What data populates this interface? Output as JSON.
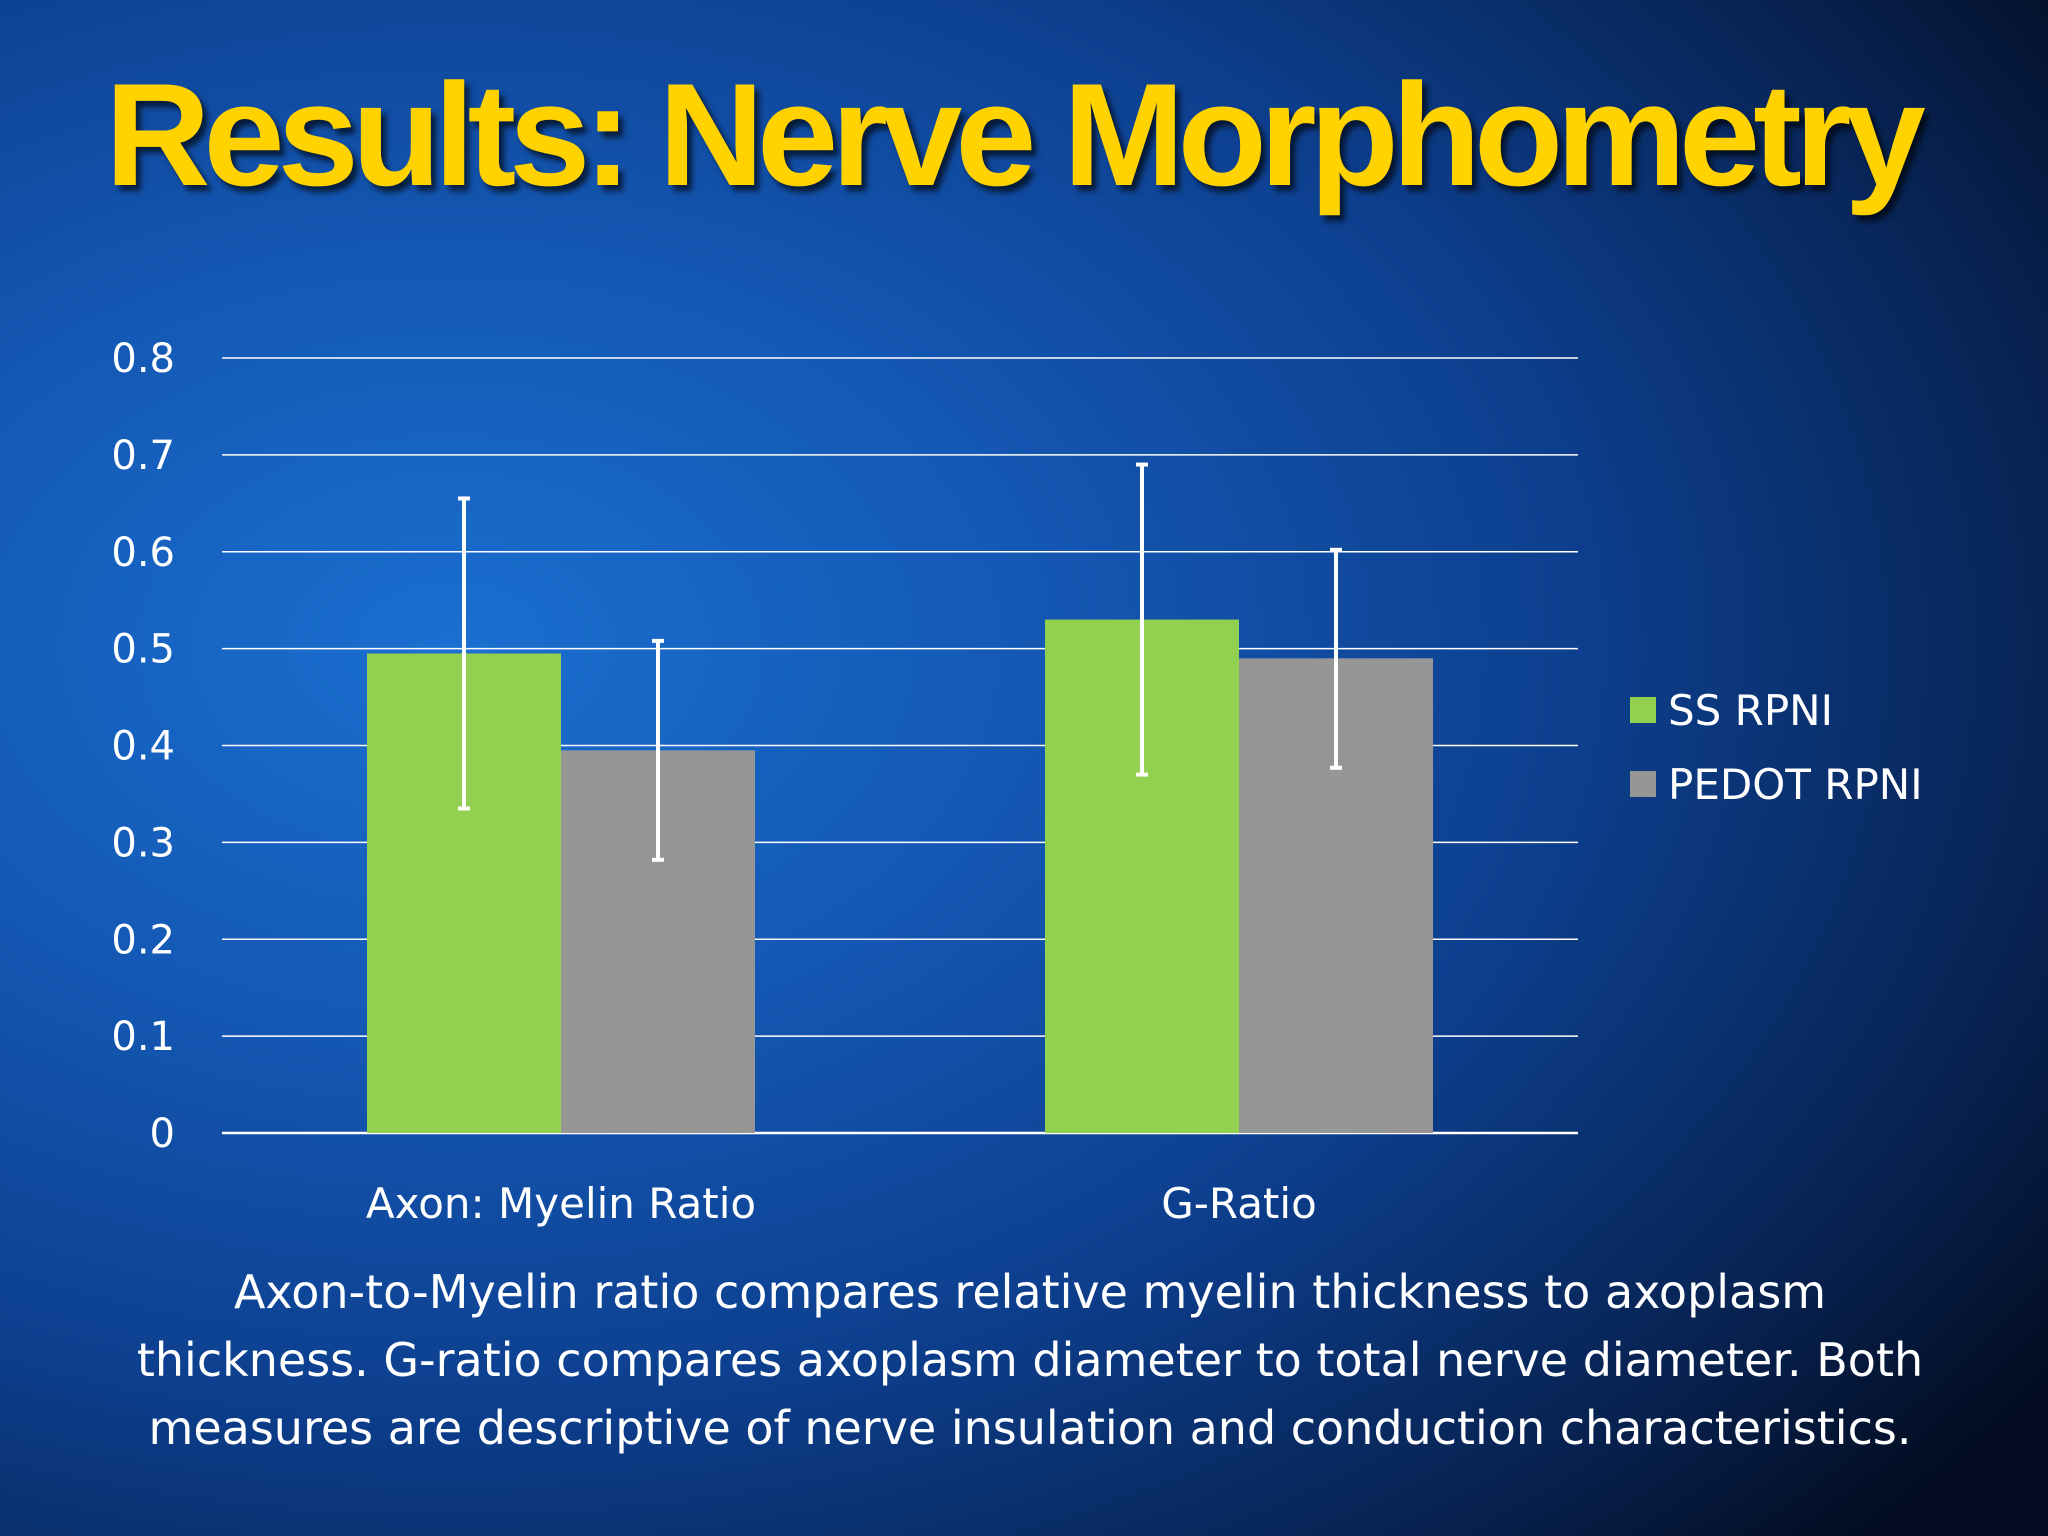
{
  "slide": {
    "title": "Results: Nerve Morphometry",
    "caption": "Axon-to-Myelin ratio compares relative myelin thickness to axoplasm thickness. G-ratio compares axoplasm diameter to total nerve diameter. Both measures are descriptive of nerve insulation and conduction characteristics."
  },
  "chart_data": {
    "type": "bar",
    "title": "",
    "xlabel": "",
    "ylabel": "",
    "ylim": [
      0,
      0.8
    ],
    "yticks": [
      "0",
      "0.1",
      "0.2",
      "0.3",
      "0.4",
      "0.5",
      "0.6",
      "0.7",
      "0.8"
    ],
    "grid": true,
    "legend_position": "right",
    "categories": [
      "Axon: Myelin Ratio",
      "G-Ratio"
    ],
    "series": [
      {
        "name": "SS RPNI",
        "color": "#92d050",
        "values": [
          0.495,
          0.53
        ],
        "error_low": [
          0.335,
          0.37
        ],
        "error_high": [
          0.655,
          0.69
        ]
      },
      {
        "name": "PEDOT RPNI",
        "color": "#969696",
        "values": [
          0.395,
          0.49
        ],
        "error_low": [
          0.282,
          0.377
        ],
        "error_high": [
          0.508,
          0.602
        ]
      }
    ]
  }
}
